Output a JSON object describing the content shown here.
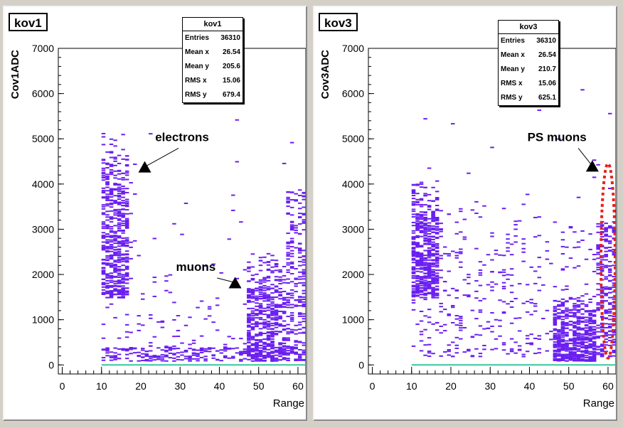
{
  "chart_data": [
    {
      "type": "heatmap",
      "title": "kov1",
      "xlabel": "Range",
      "ylabel": "Cov1ADC",
      "xlim": [
        -1,
        62
      ],
      "ylim": [
        -200,
        7000
      ],
      "xticks": [
        "0",
        "10",
        "20",
        "30",
        "40",
        "50",
        "60"
      ],
      "yticks": [
        "0",
        "1000",
        "2000",
        "3000",
        "4000",
        "5000",
        "6000",
        "7000"
      ],
      "stats": {
        "title": "kov1",
        "entries": "36310",
        "mean_x": "26.54",
        "mean_y": "205.6",
        "rms_x": "15.06",
        "rms_y": "679.4"
      },
      "stat_labels": [
        "Entries",
        "Mean x",
        "Mean y",
        "RMS x",
        "RMS y"
      ],
      "annotations": [
        {
          "text": "electrons",
          "x": 21,
          "y": 4380,
          "tx": 30.5,
          "ty": 4950
        },
        {
          "text": "muons",
          "x": 44,
          "y": 1820,
          "tx": 34,
          "ty": 2080
        }
      ],
      "clusters": [
        {
          "x0": 10,
          "x1": 17,
          "y0": 1500,
          "y1": 5300,
          "density": "high"
        },
        {
          "x0": 47,
          "x1": 57,
          "y0": 100,
          "y1": 2600,
          "density": "high"
        },
        {
          "x0": 57,
          "x1": 62,
          "y0": 100,
          "y1": 3900,
          "density": "medium"
        },
        {
          "x0": 10,
          "x1": 60,
          "y0": 100,
          "y1": 400,
          "density": "medium"
        }
      ],
      "color": "#6a1ff0"
    },
    {
      "type": "heatmap",
      "title": "kov3",
      "xlabel": "Range",
      "ylabel": "Cov3ADC",
      "xlim": [
        -1,
        62
      ],
      "ylim": [
        -200,
        7000
      ],
      "xticks": [
        "0",
        "10",
        "20",
        "30",
        "40",
        "50",
        "60"
      ],
      "yticks": [
        "0",
        "1000",
        "2000",
        "3000",
        "4000",
        "5000",
        "6000",
        "7000"
      ],
      "stats": {
        "title": "kov3",
        "entries": "36310",
        "mean_x": "26.54",
        "mean_y": "210.7",
        "rms_x": "15.06",
        "rms_y": "625.1"
      },
      "stat_labels": [
        "Entries",
        "Mean x",
        "Mean y",
        "RMS x",
        "RMS y"
      ],
      "annotations": [
        {
          "text": "PS muons",
          "x": 56,
          "y": 4400,
          "tx": 47,
          "ty": 4950
        }
      ],
      "highlight": {
        "x": 60,
        "y": 2300,
        "rx": 1.8,
        "ry": 2150,
        "color": "#e8201c"
      },
      "clusters": [
        {
          "x0": 10,
          "x1": 17,
          "y0": 1500,
          "y1": 4200,
          "density": "high"
        },
        {
          "x0": 46,
          "x1": 57,
          "y0": 100,
          "y1": 1600,
          "density": "high"
        },
        {
          "x0": 10,
          "x1": 62,
          "y0": 200,
          "y1": 3500,
          "density": "low"
        },
        {
          "x0": 57,
          "x1": 62,
          "y0": 200,
          "y1": 3200,
          "density": "medium"
        }
      ],
      "color": "#6a1ff0"
    }
  ]
}
